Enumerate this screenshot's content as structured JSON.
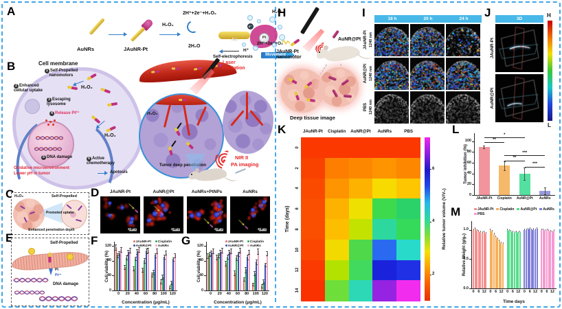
{
  "border_color": "#3fa4e6",
  "panels": {
    "a": "A",
    "b": "B",
    "c": "C",
    "d": "D",
    "e": "E",
    "f": "F",
    "g": "G",
    "h": "H",
    "i": "I",
    "j": "J",
    "k": "K",
    "l": "L",
    "m": "M"
  },
  "panelA": {
    "aunrs": "AuNRs",
    "jaunrpt": "JAuNR-Pt",
    "h2o2": "H₂O₂",
    "eq_left": "2H⁺+2e⁻+H₂O₂",
    "water": "2H₂O",
    "au": "Au",
    "pt": "Pt",
    "electron": "e⁻",
    "h2o2_right": "H₂O₂",
    "hplus": "H⁺",
    "self_electrophoresis": "Self-electrophoresis",
    "eq_right": "2H⁺+2e⁻+O₂",
    "movement": "Movement"
  },
  "panelB": {
    "title": "Cell membrane",
    "steps": [
      {
        "n": "1",
        "t": "Self-Propelled nanomotors"
      },
      {
        "n": "2",
        "t": "Enhanced cellular uptake"
      },
      {
        "n": "3",
        "t": "Escaping lysosome"
      },
      {
        "n": "4",
        "t": "Release Pt²⁺"
      },
      {
        "n": "5",
        "t": "DNA damage"
      },
      {
        "n": "6",
        "t": "Active chemotherapy"
      }
    ],
    "apoptosis": "Apotosis",
    "h2o2": "H₂O₂",
    "micro1": "Oxidative microenvironment",
    "micro2": "Lower pH in tumor",
    "laser": "Laser excitation",
    "deep": "Tumor deep penetration",
    "nir1": "NIR II",
    "nir2": "PA imaging"
  },
  "panelC": {
    "h2o2": "H₂O₂",
    "self": "Self-Propelled",
    "promoted": "Promoted uptake",
    "enhanced": "Enhanced penetration depth"
  },
  "panelD": {
    "labels": [
      "JAuNR-Pt",
      "AuNR@Pt",
      "AuNRs+PtNPs",
      "AuNRs"
    ],
    "scale": "20 μm"
  },
  "panelE": {
    "self": "Self-Propelled",
    "pt": "Pt",
    "pt2": "Pt²⁺",
    "dna": "DNA damage"
  },
  "panelH": {
    "nanomotor": "JAuNR-Pt nanomotor",
    "aunrpt": "AuNR@Pt",
    "caption": "Deep tissue image"
  },
  "panelI": {
    "times": [
      "18 h",
      "20 h",
      "24 h"
    ],
    "rows": [
      {
        "name": "JAuNR-Pt",
        "wl": "1240 nm"
      },
      {
        "name": "AuNR@Pt",
        "wl": "1240 nm"
      },
      {
        "name": "PBS",
        "wl": "1240 nm"
      }
    ]
  },
  "panelJ": {
    "header": "3D",
    "rows": [
      "JAuNR-Pt",
      "AuNR@Pt"
    ],
    "high": "H",
    "low": "L"
  },
  "chart_data": [
    {
      "id": "F",
      "type": "bar",
      "ylabel": "Cell viability (%)",
      "xlabel": "Concentration (μg/mL)",
      "categories": [
        "0",
        "20",
        "40",
        "60",
        "80",
        "100",
        "120"
      ],
      "ylim": [
        0,
        132
      ],
      "yticks": [
        "0",
        "40",
        "80",
        "120"
      ],
      "legend_position": "top-right",
      "series": [
        {
          "name": "JAuNR-Pt",
          "color": "#e4706c",
          "values": [
            118,
            64,
            60,
            57,
            44,
            25,
            10
          ],
          "errors": [
            6,
            5,
            5,
            5,
            5,
            4,
            3
          ]
        },
        {
          "name": "Cisplatin",
          "color": "#35a853",
          "values": [
            96,
            90,
            87,
            82,
            50,
            38,
            22
          ],
          "errors": [
            5,
            5,
            4,
            5,
            6,
            5,
            4
          ]
        },
        {
          "name": "AuNR@Pt",
          "color": "#3b4fb0",
          "values": [
            101,
            104,
            106,
            108,
            96,
            92,
            86
          ],
          "errors": [
            5,
            6,
            5,
            6,
            5,
            5,
            4
          ]
        },
        {
          "name": "AuNRs",
          "color": "#f0a4c4",
          "values": [
            112,
            110,
            112,
            110,
            108,
            103,
            96
          ],
          "errors": [
            6,
            5,
            6,
            5,
            5,
            5,
            5
          ]
        }
      ]
    },
    {
      "id": "G",
      "type": "bar",
      "ylabel": "Cell viability (%)",
      "xlabel": "Concentration (μg/mL)",
      "categories": [
        "0",
        "20",
        "40",
        "60",
        "80",
        "100",
        "120"
      ],
      "ylim": [
        0,
        132
      ],
      "yticks": [
        "0",
        "40",
        "80",
        "120"
      ],
      "legend_position": "top-right",
      "series": [
        {
          "name": "JAuNR-Pt",
          "color": "#e4706c",
          "values": [
            95,
            91,
            74,
            48,
            32,
            18,
            13
          ],
          "errors": [
            5,
            5,
            6,
            5,
            4,
            3,
            3
          ]
        },
        {
          "name": "Cisplatin",
          "color": "#35a853",
          "values": [
            100,
            96,
            92,
            89,
            57,
            47,
            25
          ],
          "errors": [
            5,
            4,
            5,
            5,
            6,
            5,
            4
          ]
        },
        {
          "name": "AuNR@Pt",
          "color": "#3b4fb0",
          "values": [
            102,
            104,
            105,
            100,
            91,
            78,
            71
          ],
          "errors": [
            5,
            6,
            5,
            5,
            5,
            5,
            4
          ]
        },
        {
          "name": "AuNRs",
          "color": "#f0a4c4",
          "values": [
            108,
            110,
            108,
            110,
            105,
            107,
            101
          ],
          "errors": [
            6,
            5,
            5,
            5,
            5,
            6,
            5
          ]
        }
      ]
    },
    {
      "id": "K",
      "type": "heatmap",
      "columns": [
        "JAuNR-Pt",
        "Cisplatin",
        "AuNR@Pt",
        "AuNRs",
        "PBS"
      ],
      "rows": [
        "0",
        "2",
        "4",
        "6",
        "8",
        "10",
        "12",
        "14"
      ],
      "row_axis": "Time (days)",
      "colorbar_label": "Relative tumor volume (V/V₀)",
      "colorbar_ticks": [
        "2",
        "4",
        "6"
      ],
      "scale_range": [
        1,
        7.2
      ],
      "values": [
        [
          1.0,
          1.0,
          1.0,
          1.0,
          1.0
        ],
        [
          1.1,
          1.5,
          1.6,
          1.7,
          1.6
        ],
        [
          1.15,
          1.7,
          1.9,
          2.4,
          2.1
        ],
        [
          1.2,
          1.9,
          2.3,
          3.7,
          3.9
        ],
        [
          1.2,
          2.1,
          2.7,
          4.2,
          3.9
        ],
        [
          1.15,
          2.4,
          3.7,
          5.5,
          4.6
        ],
        [
          1.05,
          2.6,
          3.9,
          5.9,
          5.7
        ],
        [
          1.0,
          3.6,
          4.5,
          6.5,
          7.0
        ]
      ],
      "colors": [
        [
          "#fa3800",
          "#fa3800",
          "#fa3800",
          "#fa3800",
          "#fa3800"
        ],
        [
          "#fa4200",
          "#fd7e00",
          "#fd8800",
          "#fd9400",
          "#fd8800"
        ],
        [
          "#fa4a00",
          "#fd9400",
          "#fdb200",
          "#f6da00",
          "#fdc600"
        ],
        [
          "#fa4e00",
          "#fdb200",
          "#eee000",
          "#3eda4e",
          "#2bd26a"
        ],
        [
          "#fa4e00",
          "#fdbe00",
          "#c4e200",
          "#2cd89e",
          "#36da5a"
        ],
        [
          "#fa4600",
          "#f2da00",
          "#4ed84a",
          "#2a6af0",
          "#28daca"
        ],
        [
          "#fa3a00",
          "#b4e200",
          "#42da5e",
          "#1a22dc",
          "#2030e4"
        ],
        [
          "#fa3200",
          "#6ede3a",
          "#2cd8b6",
          "#9622e2",
          "#f22cee"
        ]
      ]
    },
    {
      "id": "L",
      "type": "bar",
      "ylabel": "Tumor inhibition (%)",
      "categories": [
        "JAuNR-Pt",
        "Cisplatin",
        "AuNR@Pt",
        "AuNRs"
      ],
      "ylim": [
        0,
        115
      ],
      "yticks": [
        "0",
        "20",
        "40",
        "60",
        "80",
        "100"
      ],
      "values": [
        90,
        55,
        40,
        8
      ],
      "errors": [
        2,
        8,
        11,
        6
      ],
      "colors": [
        "#f2949c",
        "#f6b96a",
        "#54e0a0",
        "#9a9ade"
      ],
      "sig": [
        {
          "from": 0,
          "to": 2,
          "label": "*",
          "y": 107
        },
        {
          "from": 0,
          "to": 1,
          "label": "**",
          "y": 98
        },
        {
          "from": 1,
          "to": 3,
          "label": "***",
          "y": 74
        },
        {
          "from": 1,
          "to": 2,
          "label": "**",
          "y": 64
        },
        {
          "from": 2,
          "to": 3,
          "label": "***",
          "y": 53
        }
      ]
    },
    {
      "id": "M",
      "type": "groupbar",
      "ylabel": "Relative Weight (g/g₀)",
      "xlabel": "Time days",
      "yticks": [
        "0.0",
        "0.5",
        "1.0"
      ],
      "ylim": [
        0,
        1.15
      ],
      "group_ticks": [
        "0",
        "6",
        "12"
      ],
      "series": [
        {
          "name": "JAuNR-Pt",
          "color": "#f58f8f",
          "values": [
            1.0,
            1.02,
            0.98,
            0.97,
            0.96,
            0.95,
            0.96,
            0.94
          ]
        },
        {
          "name": "Cisplatin",
          "color": "#f5b05a",
          "values": [
            1.0,
            0.97,
            0.93,
            0.88,
            0.84,
            0.81,
            0.78,
            0.76
          ]
        },
        {
          "name": "AuNR@Pt",
          "color": "#57dd8d",
          "values": [
            1.0,
            0.99,
            0.97,
            0.96,
            0.95,
            0.96,
            0.95,
            0.96
          ]
        },
        {
          "name": "AuNRs",
          "color": "#7d7dd8",
          "values": [
            1.0,
            1.0,
            1.01,
            1.02,
            1.0,
            1.01,
            1.0,
            1.02
          ]
        },
        {
          "name": "PBS",
          "color": "#f59ad0",
          "values": [
            1.0,
            1.0,
            0.99,
            1.0,
            0.98,
            0.97,
            0.96,
            0.98
          ]
        }
      ]
    }
  ]
}
